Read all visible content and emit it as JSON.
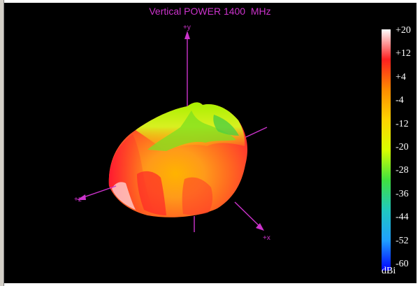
{
  "window": {
    "title": "Vertical POWER 1400  MHz"
  },
  "axes": {
    "y_label": "+y",
    "z_label": "+z",
    "x_label": "+x"
  },
  "colorbar": {
    "unit": "dBi",
    "ticks": [
      "+20",
      "+12",
      "+4",
      "-4",
      "-12",
      "-20",
      "-28",
      "-36",
      "-44",
      "-52",
      "-60"
    ],
    "min": -60,
    "max": 20,
    "colors": [
      "#ffffff",
      "#ff2020",
      "#ff8c00",
      "#ffd400",
      "#d8ff00",
      "#40e040",
      "#20c8c0",
      "#20a0ff",
      "#0000ff"
    ]
  },
  "colors": {
    "background": "#000000",
    "axis": "#cc33cc"
  }
}
